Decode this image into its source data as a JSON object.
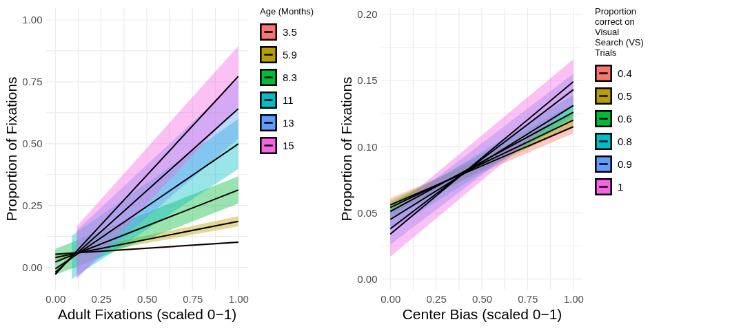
{
  "chart_data": [
    {
      "type": "line",
      "xlabel": "Adult Fixations (scaled 0−1)",
      "ylabel": "Proportion of Fixations",
      "legend_title": "Age (Months)",
      "legend": "right",
      "grid": true,
      "xlim": [
        -0.05,
        1.05
      ],
      "ylim": [
        -0.09,
        1.05
      ],
      "xticks": [
        {
          "value": 0,
          "label": "0.00"
        },
        {
          "value": 0.125,
          "label": null
        },
        {
          "value": 0.25,
          "label": "0.25"
        },
        {
          "value": 0.375,
          "label": null
        },
        {
          "value": 0.5,
          "label": "0.50"
        },
        {
          "value": 0.625,
          "label": null
        },
        {
          "value": 0.75,
          "label": "0.75"
        },
        {
          "value": 0.875,
          "label": null
        },
        {
          "value": 1,
          "label": "1.00"
        }
      ],
      "yticks": [
        {
          "value": 0,
          "label": "0.00"
        },
        {
          "value": 0.125,
          "label": null
        },
        {
          "value": 0.25,
          "label": "0.25"
        },
        {
          "value": 0.375,
          "label": null
        },
        {
          "value": 0.5,
          "label": "0.50"
        },
        {
          "value": 0.625,
          "label": null
        },
        {
          "value": 0.75,
          "label": "0.75"
        },
        {
          "value": 0.875,
          "label": null
        },
        {
          "value": 1,
          "label": "1.00"
        }
      ],
      "colors": [
        "#f8766d",
        "#b79f00",
        "#00ba38",
        "#00bfc4",
        "#619cff",
        "#f564e3"
      ],
      "series": [
        {
          "name": "3.5",
          "color": "#000000",
          "x": [
            0,
            1
          ],
          "values": [
            0.053,
            0.102
          ],
          "lower": [
            0.05,
            0.098
          ],
          "upper": [
            0.056,
            0.106
          ]
        },
        {
          "name": "5.9",
          "color": "#000000",
          "x": [
            0,
            1
          ],
          "values": [
            0.04,
            0.186
          ],
          "lower": [
            0.03,
            0.166
          ],
          "upper": [
            0.05,
            0.207
          ]
        },
        {
          "name": "8.3",
          "color": "#000000",
          "x": [
            0,
            1
          ],
          "values": [
            0.022,
            0.313
          ],
          "lower": [
            -0.03,
            0.258
          ],
          "upper": [
            0.075,
            0.368
          ]
        },
        {
          "name": "11",
          "color": "#000000",
          "x": [
            0,
            0.09,
            1
          ],
          "values": [
            -0.006,
            0.039,
            0.499
          ],
          "lower": [
            null,
            -0.047,
            0.398
          ],
          "upper": [
            null,
            0.128,
            0.6
          ]
        },
        {
          "name": "13",
          "color": "#000000",
          "x": [
            0,
            0.117,
            1
          ],
          "values": [
            -0.02,
            0.057,
            0.641
          ],
          "lower": [
            null,
            -0.04,
            0.52
          ],
          "upper": [
            null,
            0.15,
            0.76
          ]
        },
        {
          "name": "15",
          "color": "#000000",
          "x": [
            0,
            0.117,
            1
          ],
          "values": [
            -0.028,
            0.066,
            0.772
          ],
          "lower": [
            null,
            -0.047,
            0.65
          ],
          "upper": [
            null,
            0.166,
            0.895
          ]
        }
      ]
    },
    {
      "type": "line",
      "xlabel": "Center Bias (scaled 0−1)",
      "ylabel": "Proportion of Fixations",
      "legend_title": "Proportion correct on Visual Search (VS) Trials",
      "legend": "right",
      "grid": true,
      "xlim": [
        -0.05,
        1.05
      ],
      "ylim": [
        -0.008,
        0.205
      ],
      "xticks": [
        {
          "value": 0,
          "label": "0.00"
        },
        {
          "value": 0.125,
          "label": null
        },
        {
          "value": 0.25,
          "label": "0.25"
        },
        {
          "value": 0.375,
          "label": null
        },
        {
          "value": 0.5,
          "label": "0.50"
        },
        {
          "value": 0.625,
          "label": null
        },
        {
          "value": 0.75,
          "label": "0.75"
        },
        {
          "value": 0.875,
          "label": null
        },
        {
          "value": 1,
          "label": "1.00"
        }
      ],
      "yticks": [
        {
          "value": 0,
          "label": "0.00"
        },
        {
          "value": 0.025,
          "label": null
        },
        {
          "value": 0.05,
          "label": "0.05"
        },
        {
          "value": 0.075,
          "label": null
        },
        {
          "value": 0.1,
          "label": "0.10"
        },
        {
          "value": 0.125,
          "label": null
        },
        {
          "value": 0.15,
          "label": "0.15"
        },
        {
          "value": 0.175,
          "label": null
        },
        {
          "value": 0.2,
          "label": "0.20"
        }
      ],
      "colors": [
        "#f8766d",
        "#b79f00",
        "#00ba38",
        "#00bfc4",
        "#619cff",
        "#f564e3"
      ],
      "series": [
        {
          "name": "0.4",
          "color": "#000000",
          "x": [
            0,
            1
          ],
          "values": [
            0.056,
            0.115
          ],
          "lower": [
            0.051,
            0.11
          ],
          "upper": [
            0.061,
            0.12
          ]
        },
        {
          "name": "0.5",
          "color": "#000000",
          "x": [
            0,
            1
          ],
          "values": [
            0.054,
            0.12
          ],
          "lower": [
            0.049,
            0.115
          ],
          "upper": [
            0.059,
            0.125
          ]
        },
        {
          "name": "0.6",
          "color": "#000000",
          "x": [
            0,
            1
          ],
          "values": [
            0.051,
            0.126
          ],
          "lower": [
            0.045,
            0.12
          ],
          "upper": [
            0.057,
            0.132
          ]
        },
        {
          "name": "0.8",
          "color": "#000000",
          "x": [
            0,
            1
          ],
          "values": [
            0.045,
            0.131
          ],
          "lower": [
            0.037,
            0.123
          ],
          "upper": [
            0.053,
            0.139
          ]
        },
        {
          "name": "0.9",
          "color": "#000000",
          "x": [
            0,
            1
          ],
          "values": [
            0.038,
            0.143
          ],
          "lower": [
            0.026,
            0.131
          ],
          "upper": [
            0.05,
            0.155
          ]
        },
        {
          "name": "1",
          "color": "#000000",
          "x": [
            0,
            1
          ],
          "values": [
            0.034,
            0.149
          ],
          "lower": [
            0.017,
            0.132
          ],
          "upper": [
            0.051,
            0.166
          ]
        }
      ]
    }
  ]
}
